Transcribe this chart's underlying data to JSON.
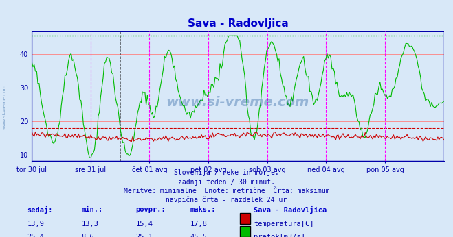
{
  "title": "Sava - Radovljica",
  "title_color": "#0000cc",
  "bg_color": "#d8e8f8",
  "plot_bg_color": "#d8e8f8",
  "grid_color": "#c08080",
  "grid_color_minor": "#e0c0c0",
  "ylim": [
    8,
    47
  ],
  "yticks": [
    10,
    20,
    30,
    40
  ],
  "xlabel_color": "#0000aa",
  "ylabel_color": "#0000aa",
  "temp_color": "#cc0000",
  "flow_color": "#00bb00",
  "max_line_color": "#00cc00",
  "max_line_value": 45.5,
  "avg_temp_line": 17.8,
  "n_points": 336,
  "day_labels": [
    "tor 30 jul",
    "sre 31 jul",
    "čet 01 avg",
    "pet 02 avg",
    "sob 03 avg",
    "ned 04 avg",
    "pon 05 avg"
  ],
  "subtitle1": "Slovenija / reke in morje.",
  "subtitle2": "zadnji teden / 30 minut.",
  "subtitle3": "Meritve: minimalne  Enote: metrične  Črta: maksimum",
  "subtitle4": "navpična črta - razdelek 24 ur",
  "stat_headers": [
    "sedaj:",
    "min.:",
    "povpr.:",
    "maks.:"
  ],
  "station_name": "Sava - Radovljica",
  "temp_stats": [
    "13,9",
    "13,3",
    "15,4",
    "17,8"
  ],
  "flow_stats": [
    "25,4",
    "8,6",
    "25,1",
    "45,5"
  ],
  "legend_temp": "temperatura[C]",
  "legend_flow": "pretok[m3/s]",
  "watermark": "www.si-vreme.com"
}
